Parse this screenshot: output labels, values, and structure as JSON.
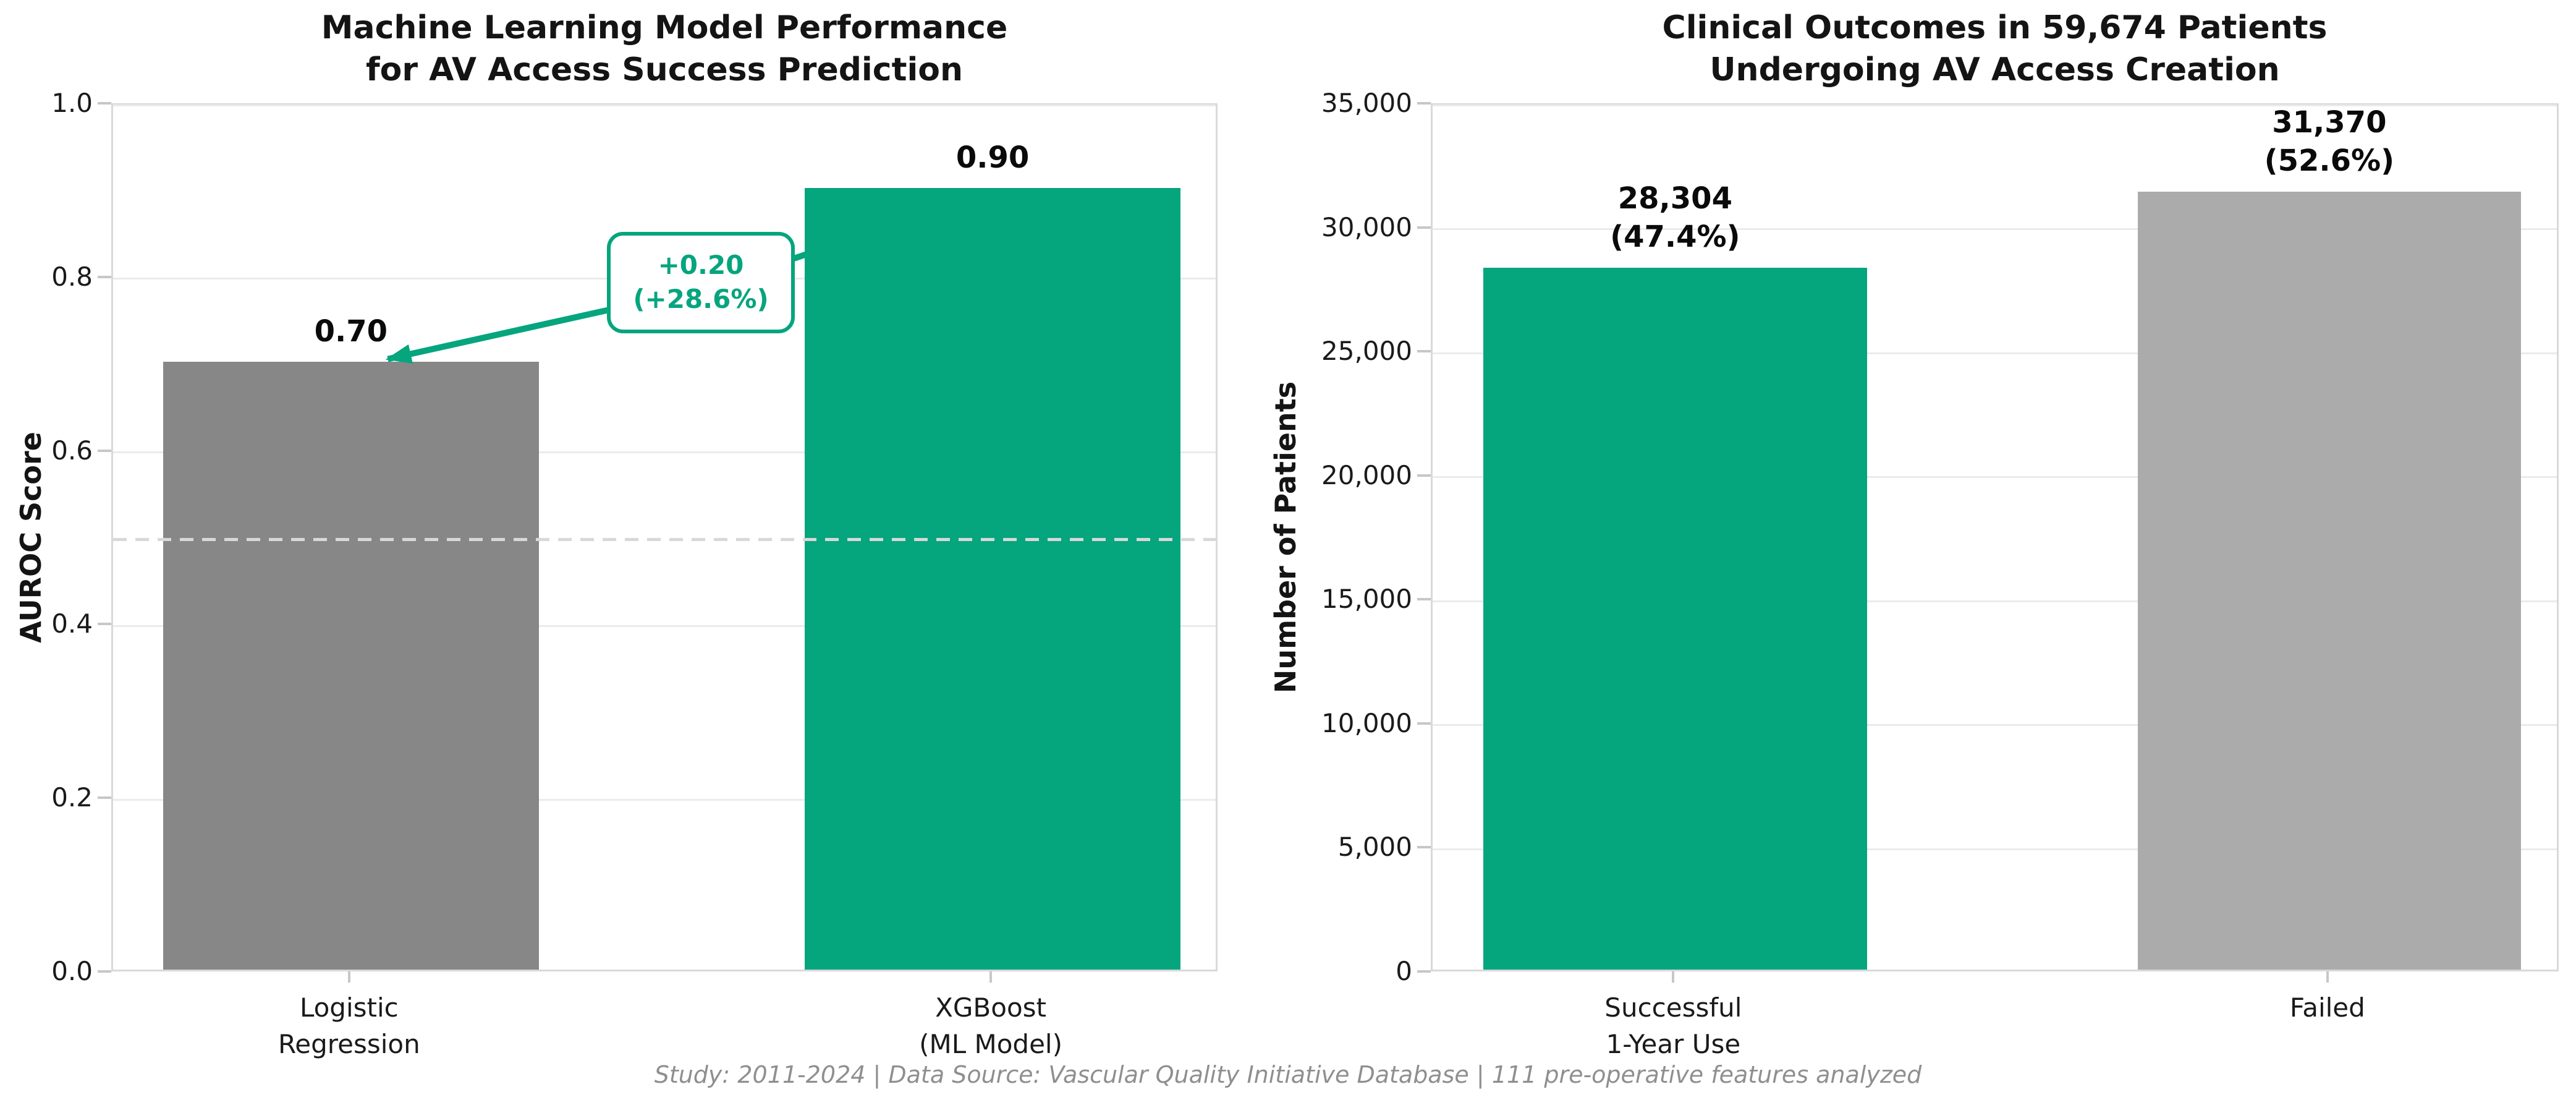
{
  "figure": {
    "background": "#ffffff",
    "footer": "Study: 2011-2024 | Data Source: Vascular Quality Initiative Database | 111 pre-operative features analyzed"
  },
  "colors": {
    "green": "#05a57e",
    "gray_dark": "#878787",
    "gray_light": "#ababab",
    "gridline": "#ebebeb",
    "spine": "#d9d9d9",
    "tick": "#c7c7c7",
    "reference_dash": "#d8d8d8",
    "footer_text": "#8f8f8f"
  },
  "chart_data": [
    {
      "type": "bar",
      "title": "Machine Learning Model Performance\nfor AV Access Success Prediction",
      "ylabel": "AUROC Score",
      "xlabel": "",
      "categories": [
        "Logistic\nRegression",
        "XGBoost\n(ML Model)"
      ],
      "values": [
        0.7,
        0.9
      ],
      "bar_labels": [
        "0.70",
        "0.90"
      ],
      "bar_colors": [
        "#878787",
        "#05a57e"
      ],
      "ylim": [
        0.0,
        1.0
      ],
      "yticks": [
        0.0,
        0.2,
        0.4,
        0.6,
        0.8,
        1.0
      ],
      "ytick_labels": [
        "0.0",
        "0.2",
        "0.4",
        "0.6",
        "0.8",
        "1.0"
      ],
      "grid": true,
      "legend": null,
      "reference_line": {
        "value": 0.5,
        "style": "dashed",
        "color": "#d8d8d8"
      },
      "annotation": {
        "text": "+0.20\n(+28.6%)",
        "color": "#05a57e",
        "points_to": [
          "Logistic Regression bar top",
          "XGBoost bar top"
        ]
      }
    },
    {
      "type": "bar",
      "title": "Clinical Outcomes in 59,674 Patients\nUndergoing AV Access Creation",
      "ylabel": "Number of Patients",
      "xlabel": "",
      "categories": [
        "Successful\n1-Year Use",
        "Failed"
      ],
      "values": [
        28304,
        31370
      ],
      "bar_labels": [
        "28,304\n(47.4%)",
        "31,370\n(52.6%)"
      ],
      "bar_colors": [
        "#05a57e",
        "#ababab"
      ],
      "ylim": [
        0,
        35000
      ],
      "yticks": [
        0,
        5000,
        10000,
        15000,
        20000,
        25000,
        30000,
        35000
      ],
      "ytick_labels": [
        "0",
        "5,000",
        "10,000",
        "15,000",
        "20,000",
        "25,000",
        "30,000",
        "35,000"
      ],
      "grid": true,
      "legend": null
    }
  ]
}
